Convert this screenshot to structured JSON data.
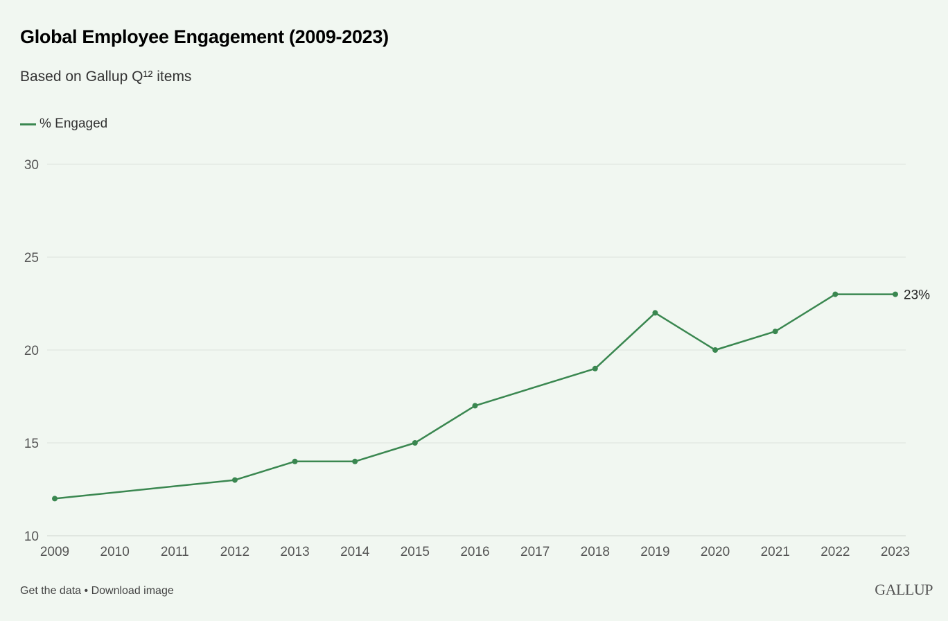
{
  "chart_data": {
    "type": "line",
    "title": "Global Employee Engagement (2009-2023)",
    "subtitle": "Based on Gallup Q¹² items",
    "xlabel": "",
    "ylabel": "",
    "x_ticks": [
      "2009",
      "2010",
      "2011",
      "2012",
      "2013",
      "2014",
      "2015",
      "2016",
      "2017",
      "2018",
      "2019",
      "2020",
      "2021",
      "2022",
      "2023"
    ],
    "y_ticks": [
      "10",
      "15",
      "20",
      "25",
      "30"
    ],
    "ylim": [
      10,
      30
    ],
    "xlim": [
      2009,
      2023
    ],
    "grid": true,
    "legend_position": "top-left",
    "series": [
      {
        "name": "% Engaged",
        "color": "#3a8750",
        "x": [
          2009,
          2012,
          2013,
          2014,
          2015,
          2016,
          2018,
          2019,
          2020,
          2021,
          2022,
          2023
        ],
        "y": [
          12,
          13,
          14,
          14,
          15,
          17,
          19,
          22,
          20,
          21,
          23,
          23
        ],
        "end_label": "23%"
      }
    ]
  },
  "footer": {
    "get_data": "Get the data",
    "separator": " • ",
    "download": "Download image",
    "logo": "GALLUP"
  }
}
